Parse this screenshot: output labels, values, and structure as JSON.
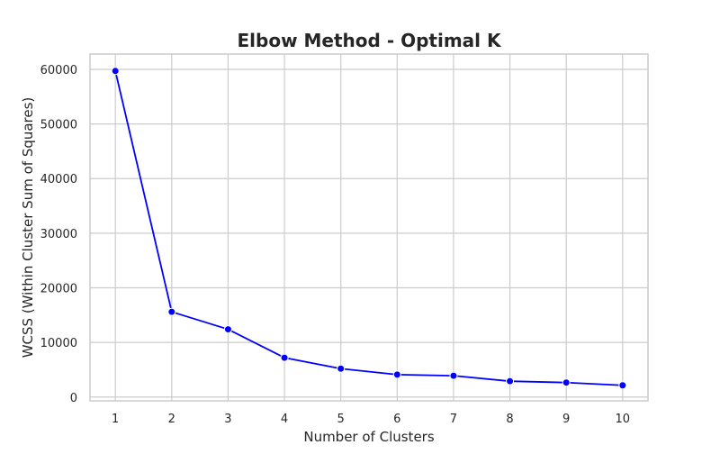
{
  "chart_data": {
    "type": "line",
    "title": "Elbow Method - Optimal K",
    "xlabel": "Number of Clusters",
    "ylabel": "WCSS (Within Cluster Sum of Squares)",
    "x": [
      1,
      2,
      3,
      4,
      5,
      6,
      7,
      8,
      9,
      10
    ],
    "series": [
      {
        "values": [
          59700,
          15600,
          12400,
          7200,
          5200,
          4100,
          3900,
          2900,
          2650,
          2150
        ],
        "color": "#0000ff",
        "marker": "circle"
      }
    ],
    "xticks": [
      "1",
      "2",
      "3",
      "4",
      "5",
      "6",
      "7",
      "8",
      "9",
      "10"
    ],
    "yticks": [
      "0",
      "10000",
      "20000",
      "30000",
      "40000",
      "50000",
      "60000"
    ],
    "ylim": [
      -700,
      62800
    ],
    "xlim": [
      0.55,
      10.45
    ],
    "grid": true,
    "legend": "none"
  }
}
